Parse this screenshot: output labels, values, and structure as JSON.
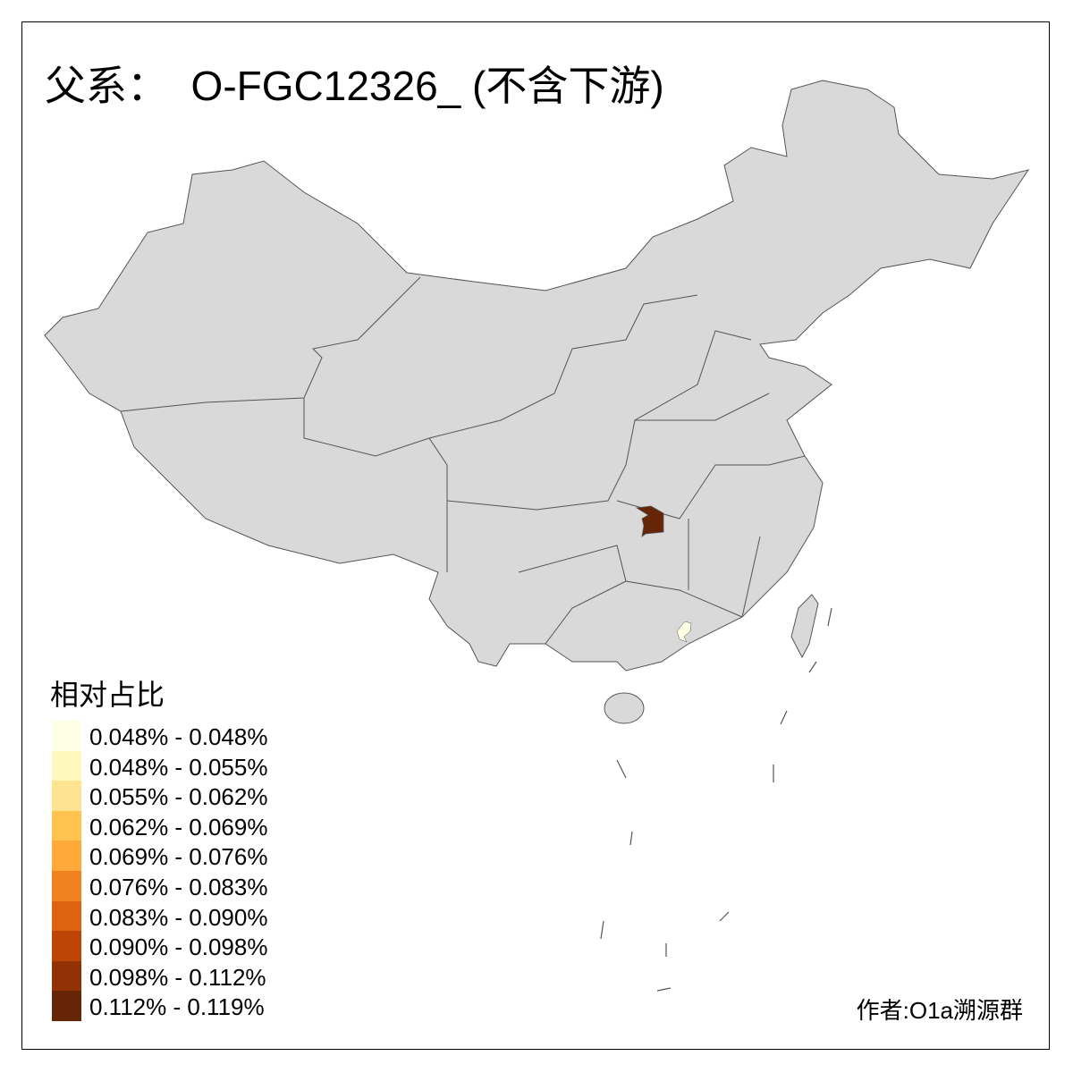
{
  "title": "父系：  O-FGC12326_ (不含下游)",
  "legend": {
    "title": "相对占比",
    "items": [
      {
        "label": "0.048% - 0.048%",
        "color": "#FFFFE5"
      },
      {
        "label": "0.048% - 0.055%",
        "color": "#FFF7BC"
      },
      {
        "label": "0.055% - 0.062%",
        "color": "#FEE391"
      },
      {
        "label": "0.062% - 0.069%",
        "color": "#FEC44F"
      },
      {
        "label": "0.069% - 0.076%",
        "color": "#FEA93A"
      },
      {
        "label": "0.076% - 0.083%",
        "color": "#F2821F"
      },
      {
        "label": "0.083% - 0.090%",
        "color": "#DD6211"
      },
      {
        "label": "0.090% - 0.098%",
        "color": "#BD4505"
      },
      {
        "label": "0.098% - 0.112%",
        "color": "#923104"
      },
      {
        "label": "0.112% - 0.119%",
        "color": "#662506"
      }
    ]
  },
  "map": {
    "base_color": "#D9D9D9",
    "border_color": "#555555",
    "highlighted": [
      {
        "region": "湘西北 (Hunan north-west)",
        "color": "#662506"
      },
      {
        "region": "广州 (Guangzhou)",
        "color": "#FFFFE5"
      }
    ]
  },
  "author": "作者:O1a溯源群"
}
